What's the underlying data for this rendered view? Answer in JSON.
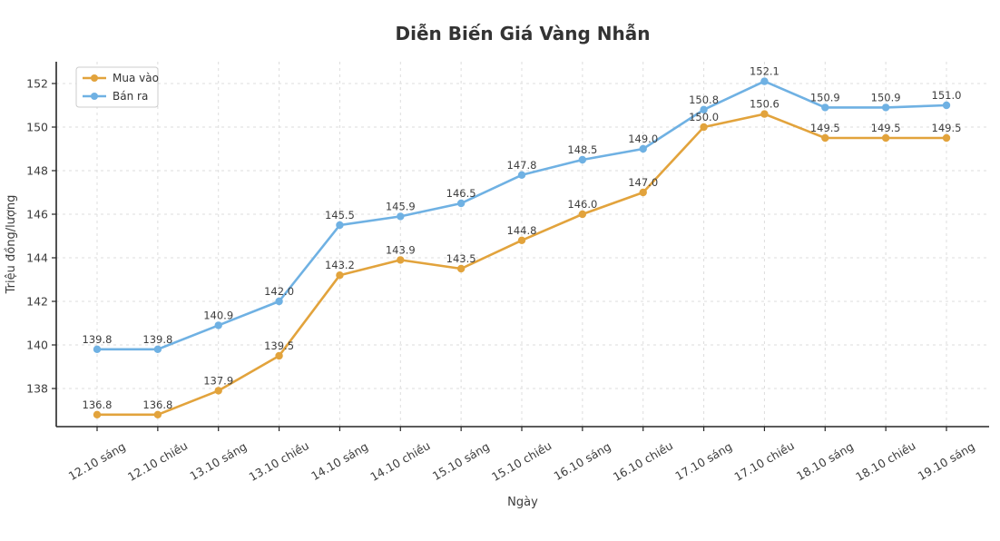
{
  "chart_data": {
    "type": "line",
    "title": "Diễn Biến Giá Vàng Nhẫn",
    "xlabel": "Ngày",
    "ylabel": "Triệu đồng/lượng",
    "categories": [
      "12.10 sáng",
      "12.10 chiều",
      "13.10 sáng",
      "13.10 chiều",
      "14.10 sáng",
      "14.10 chiều",
      "15.10 sáng",
      "15.10 chiều",
      "16.10 sáng",
      "16.10 chiều",
      "17.10 sáng",
      "17.10 chiều",
      "18.10 sáng",
      "18.10 chiều",
      "19.10 sáng"
    ],
    "series": [
      {
        "name": "Mua vào",
        "color": "#E2A33C",
        "values": [
          136.8,
          136.8,
          137.9,
          139.5,
          143.2,
          143.9,
          143.5,
          144.8,
          146.0,
          147.0,
          150.0,
          150.6,
          149.5,
          149.5,
          149.5
        ]
      },
      {
        "name": "Bán ra",
        "color": "#6FB1E3",
        "values": [
          139.8,
          139.8,
          140.9,
          142.0,
          145.5,
          145.9,
          146.5,
          147.8,
          148.5,
          149.0,
          150.8,
          152.1,
          150.9,
          150.9,
          151.0
        ]
      }
    ],
    "yticks": [
      138,
      140,
      142,
      144,
      146,
      148,
      150,
      152
    ],
    "ylim": [
      136.25,
      153.0
    ],
    "grid": true,
    "grid_style": "dashed",
    "point_labels": true,
    "point_label_format": "1-decimal",
    "legend_position": "upper-left",
    "x_tick_rotation_deg": 30,
    "colors": {
      "grid": "#dddddd",
      "spine": "#262626",
      "tick_text": "#3c3c3c",
      "point_label_text": "#3d3d3d",
      "title_text": "#333333",
      "background": "#ffffff",
      "legend_border": "#cccccc",
      "legend_background": "#ffffff"
    }
  }
}
